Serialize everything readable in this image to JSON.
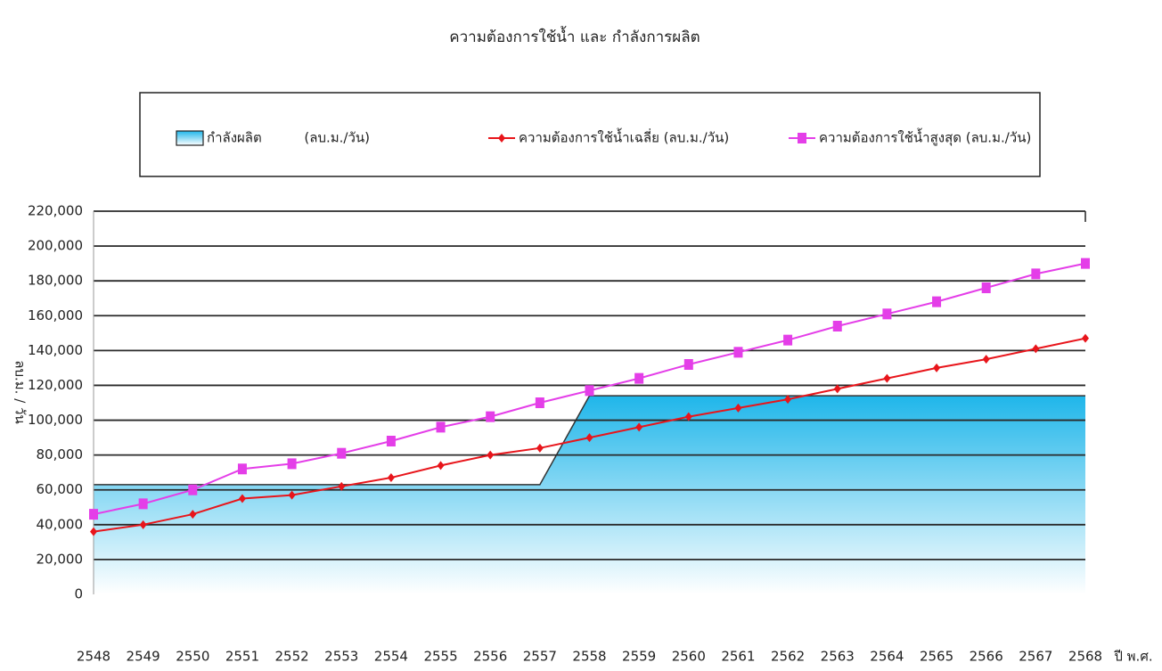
{
  "chart_data": {
    "type": "line",
    "title": "ความต้องการใช้น้ำ และ กำลังการผลิต",
    "y_label": "ลบ.ม. / วัน",
    "x_label": "ปี พ.ศ.",
    "categories": [
      "2548",
      "2549",
      "2550",
      "2551",
      "2552",
      "2553",
      "2554",
      "2555",
      "2556",
      "2557",
      "2558",
      "2559",
      "2560",
      "2561",
      "2562",
      "2563",
      "2564",
      "2565",
      "2566",
      "2567",
      "2568"
    ],
    "series": [
      {
        "name": "กำลังผลิต          (ลบ.ม./วัน)",
        "style": "area",
        "color": "#1fb6ea",
        "values": [
          63000,
          63000,
          63000,
          63000,
          63000,
          63000,
          63000,
          63000,
          63000,
          63000,
          114000,
          114000,
          114000,
          114000,
          114000,
          114000,
          114000,
          114000,
          114000,
          114000,
          114000
        ]
      },
      {
        "name": "ความต้องการใช้น้ำเฉลี่ย (ลบ.ม./วัน)",
        "style": "line",
        "marker": "diamond",
        "color": "#e8151b",
        "values": [
          36000,
          40000,
          46000,
          55000,
          57000,
          62000,
          67000,
          74000,
          80000,
          84000,
          90000,
          96000,
          102000,
          107000,
          112000,
          118000,
          124000,
          130000,
          135000,
          141000,
          147000
        ]
      },
      {
        "name": "ความต้องการใช้น้ำสูงสุด (ลบ.ม./วัน)",
        "style": "line",
        "marker": "square",
        "color": "#e43ee8",
        "values": [
          46000,
          52000,
          60000,
          72000,
          75000,
          81000,
          88000,
          96000,
          102000,
          110000,
          117000,
          124000,
          132000,
          139000,
          146000,
          154000,
          161000,
          168000,
          176000,
          184000,
          190000
        ]
      }
    ],
    "ylim": [
      0,
      220000
    ],
    "yticks": [
      0,
      {
        "value": 20000,
        "label": "20,000"
      },
      {
        "value": 40000,
        "label": "40,000"
      },
      {
        "value": 60000,
        "label": "60,000"
      },
      {
        "value": 80000,
        "label": "80,000"
      },
      {
        "value": 100000,
        "label": "100,000"
      },
      {
        "value": 120000,
        "label": "120,000"
      },
      {
        "value": 140000,
        "label": "140,000"
      },
      {
        "value": 160000,
        "label": "160,000"
      },
      {
        "value": 180000,
        "label": "180,000"
      },
      {
        "value": 200000,
        "label": "200,000"
      },
      {
        "value": 220000,
        "label": "220,000"
      }
    ],
    "grid": true,
    "legend": "top"
  }
}
